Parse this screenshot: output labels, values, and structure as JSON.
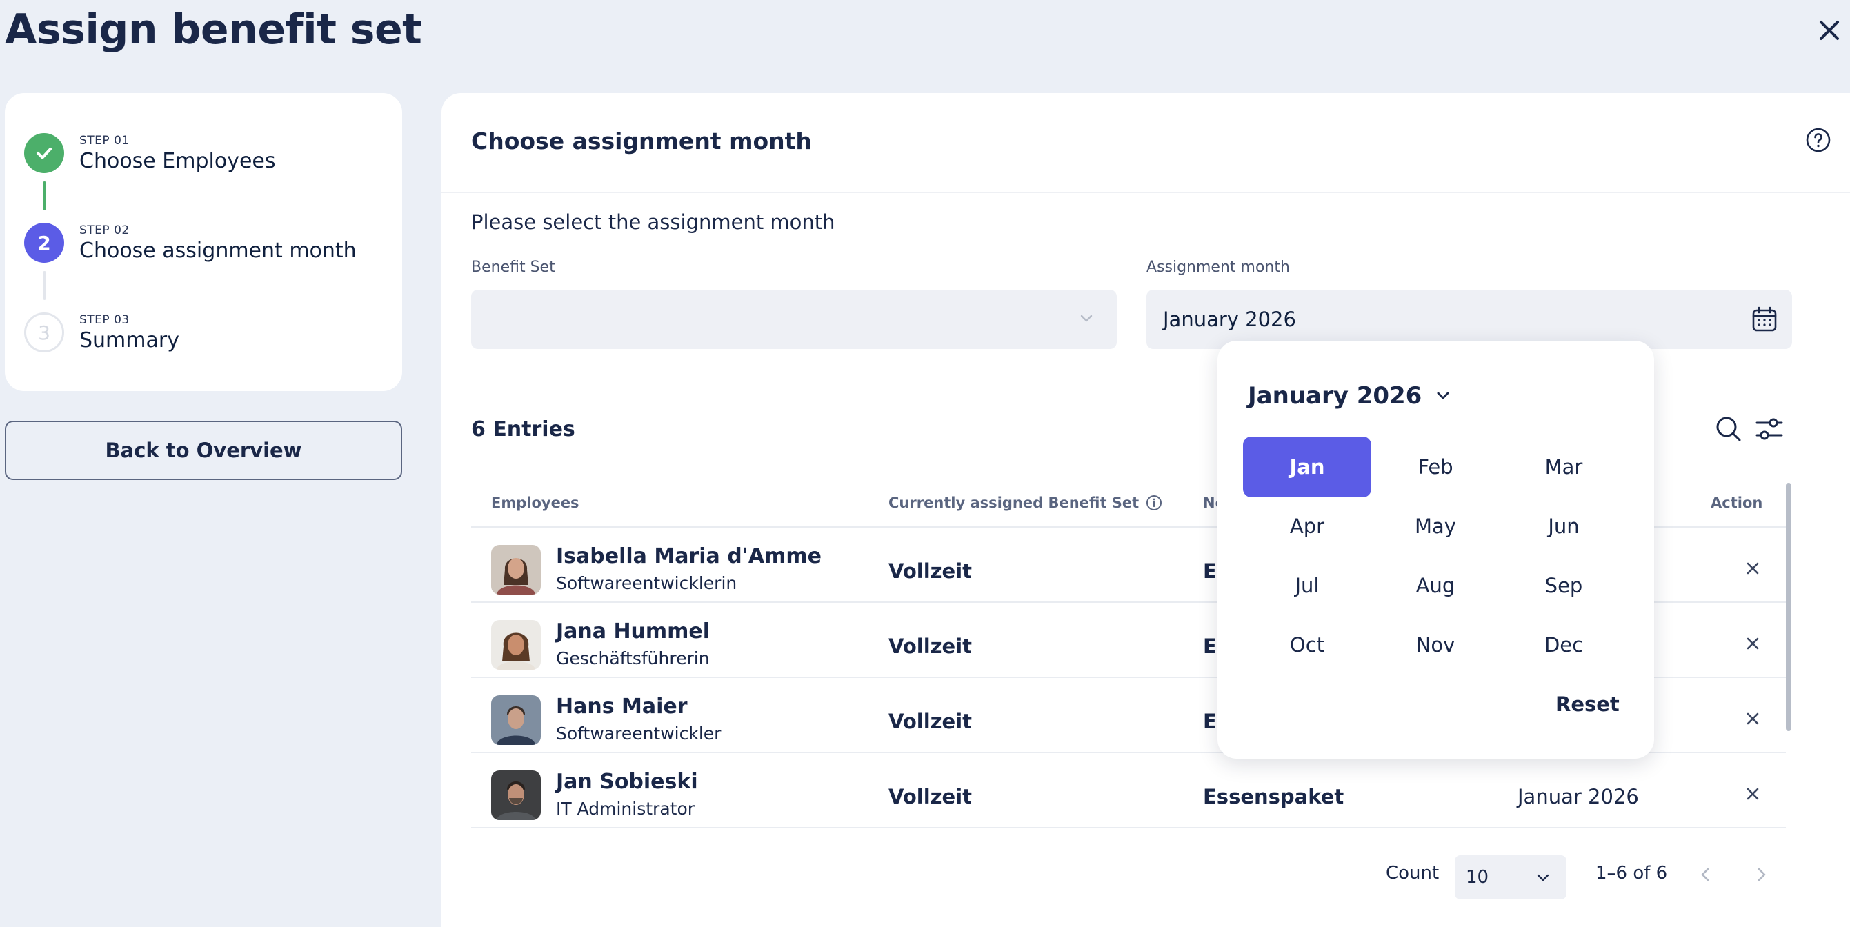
{
  "page": {
    "title": "Assign benefit set"
  },
  "stepper": {
    "steps": [
      {
        "number_label": "STEP 01",
        "name": "Choose Employees",
        "state": "done"
      },
      {
        "number_label": "STEP 02",
        "name": "Choose assignment month",
        "state": "active",
        "index": "2"
      },
      {
        "number_label": "STEP 03",
        "name": "Summary",
        "state": "pending",
        "index": "3"
      }
    ],
    "back_button": "Back to Overview"
  },
  "main": {
    "title": "Choose assignment month",
    "instruction": "Please select the assignment month",
    "benefit_set": {
      "label": "Benefit Set",
      "value": ""
    },
    "assignment_month": {
      "label": "Assignment month",
      "value": "January 2026"
    },
    "entries_label": "6 Entries"
  },
  "table": {
    "columns": [
      "Employees",
      "Currently assigned Benefit Set",
      "Ne",
      "",
      "Action"
    ],
    "rows": [
      {
        "name": "Isabella Maria d'Amme",
        "role": "Softwareentwicklerin",
        "current_set": "Vollzeit",
        "new_set": "Es",
        "month": ""
      },
      {
        "name": "Jana Hummel",
        "role": "Geschäftsführerin",
        "current_set": "Vollzeit",
        "new_set": "Es",
        "month": ""
      },
      {
        "name": "Hans Maier",
        "role": "Softwareentwickler",
        "current_set": "Vollzeit",
        "new_set": "Es",
        "month": ""
      },
      {
        "name": "Jan Sobieski",
        "role": "IT Administrator",
        "current_set": "Vollzeit",
        "new_set": "Essenspaket",
        "month": "Januar 2026"
      }
    ]
  },
  "pagination": {
    "count_label": "Count",
    "count_value": "10",
    "range": "1–6 of 6"
  },
  "month_picker": {
    "header": "January 2026",
    "months": [
      "Jan",
      "Feb",
      "Mar",
      "Apr",
      "May",
      "Jun",
      "Jul",
      "Aug",
      "Sep",
      "Oct",
      "Nov",
      "Dec"
    ],
    "selected": "Jan",
    "reset_label": "Reset"
  },
  "colors": {
    "accent": "#5b5ce6",
    "success": "#4caf6a",
    "background": "#ebeff6",
    "text": "#1a2748"
  },
  "icons": [
    "close-icon",
    "check-icon",
    "help-icon",
    "calendar-icon",
    "chevron-down-icon",
    "search-icon",
    "filter-icon",
    "info-icon",
    "chevron-left-icon",
    "chevron-right-icon"
  ]
}
